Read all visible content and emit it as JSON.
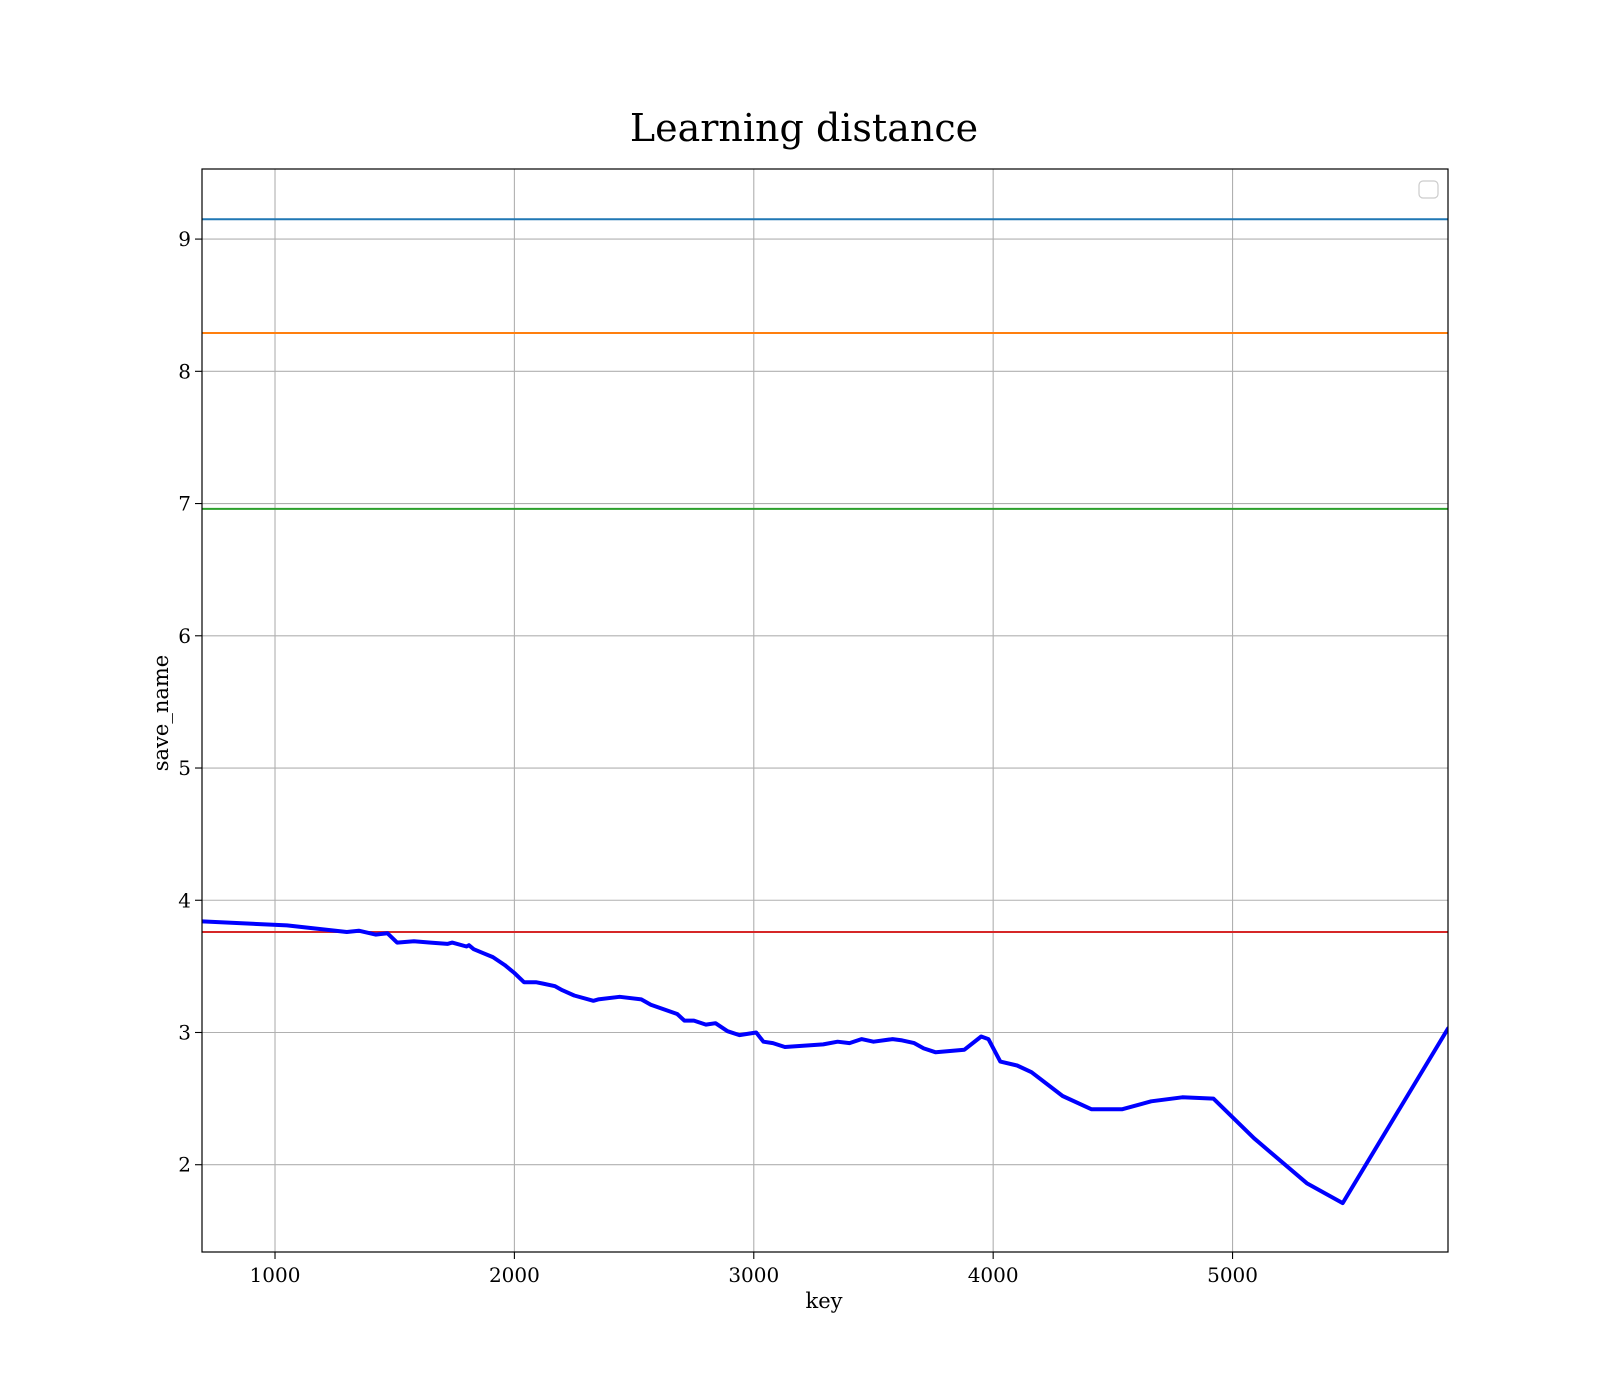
{
  "chart_data": {
    "type": "line",
    "title": "Learning distance",
    "xlabel": "key",
    "ylabel": "save_name",
    "xlim": [
      695,
      5900
    ],
    "ylim": [
      1.34,
      9.53
    ],
    "xticks": [
      1000,
      2000,
      3000,
      4000,
      5000
    ],
    "yticks": [
      2,
      3,
      4,
      5,
      6,
      7,
      8,
      9
    ],
    "grid": true,
    "legend": {
      "position": "top-right",
      "entries": []
    },
    "hlines": [
      {
        "y": 9.15,
        "color": "#1f77b4"
      },
      {
        "y": 8.29,
        "color": "#ff7f0e"
      },
      {
        "y": 6.96,
        "color": "#2ca02c"
      },
      {
        "y": 3.76,
        "color": "#d62728"
      }
    ],
    "series": [
      {
        "color": "#0000ff",
        "x": [
          695,
          1050,
          1300,
          1350,
          1420,
          1470,
          1510,
          1580,
          1650,
          1720,
          1740,
          1800,
          1810,
          1830,
          1870,
          1910,
          1960,
          2000,
          2040,
          2090,
          2120,
          2170,
          2200,
          2250,
          2330,
          2350,
          2440,
          2530,
          2570,
          2680,
          2710,
          2750,
          2800,
          2840,
          2890,
          2940,
          3010,
          3040,
          3080,
          3130,
          3290,
          3350,
          3400,
          3450,
          3500,
          3580,
          3620,
          3670,
          3710,
          3760,
          3880,
          3950,
          3980,
          4030,
          4100,
          4160,
          4290,
          4410,
          4540,
          4660,
          4790,
          4920,
          5090,
          5310,
          5460,
          5900
        ],
        "y": [
          3.84,
          3.81,
          3.76,
          3.77,
          3.74,
          3.75,
          3.68,
          3.69,
          3.68,
          3.67,
          3.68,
          3.65,
          3.66,
          3.63,
          3.6,
          3.57,
          3.51,
          3.45,
          3.38,
          3.38,
          3.37,
          3.35,
          3.32,
          3.28,
          3.24,
          3.25,
          3.27,
          3.25,
          3.21,
          3.14,
          3.09,
          3.09,
          3.06,
          3.07,
          3.01,
          2.98,
          3.0,
          2.93,
          2.92,
          2.89,
          2.91,
          2.93,
          2.92,
          2.95,
          2.93,
          2.95,
          2.94,
          2.92,
          2.88,
          2.85,
          2.87,
          2.97,
          2.95,
          2.78,
          2.75,
          2.7,
          2.52,
          2.42,
          2.42,
          2.48,
          2.51,
          2.5,
          2.2,
          1.86,
          1.71,
          3.03
        ]
      }
    ]
  }
}
